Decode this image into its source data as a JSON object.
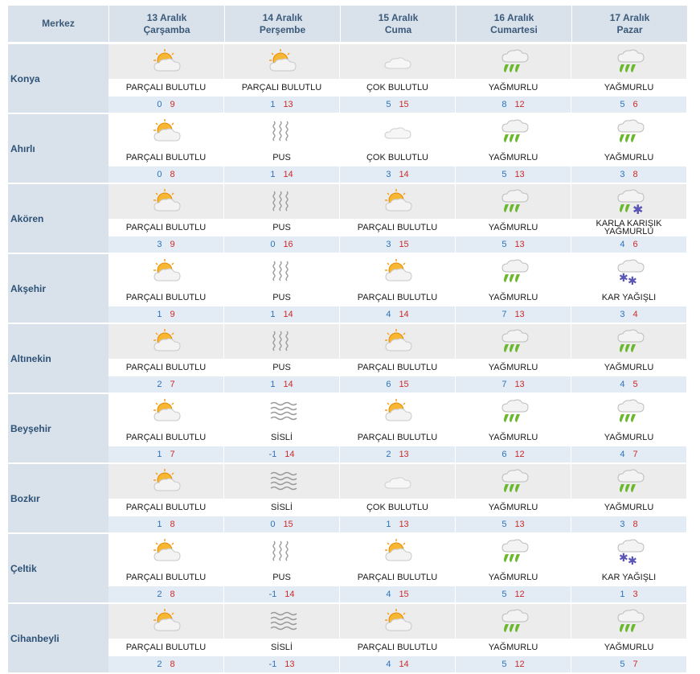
{
  "header": {
    "center_label": "Merkez",
    "days": [
      {
        "date": "13 Aralık",
        "weekday": "Çarşamba"
      },
      {
        "date": "14 Aralık",
        "weekday": "Perşembe"
      },
      {
        "date": "15 Aralık",
        "weekday": "Cuma"
      },
      {
        "date": "16 Aralık",
        "weekday": "Cumartesi"
      },
      {
        "date": "17 Aralık",
        "weekday": "Pazar"
      }
    ]
  },
  "colors": {
    "header_bg": "#d9e2eb",
    "temp_row_bg": "#e3ecf4",
    "min_temp": "#2a72bd",
    "max_temp": "#cc2a2a"
  },
  "rows": [
    {
      "city": "Konya",
      "cells": [
        {
          "icon": "partly-cloudy-icon",
          "desc": "PARÇALI BULUTLU",
          "min": "0",
          "max": "9"
        },
        {
          "icon": "partly-cloudy-icon",
          "desc": "PARÇALI BULUTLU",
          "min": "1",
          "max": "13"
        },
        {
          "icon": "cloudy-icon",
          "desc": "ÇOK BULUTLU",
          "min": "5",
          "max": "15"
        },
        {
          "icon": "rain-icon",
          "desc": "YAĞMURLU",
          "min": "8",
          "max": "12"
        },
        {
          "icon": "rain-icon",
          "desc": "YAĞMURLU",
          "min": "5",
          "max": "6"
        }
      ]
    },
    {
      "city": "Ahırlı",
      "cells": [
        {
          "icon": "partly-cloudy-icon",
          "desc": "PARÇALI BULUTLU",
          "min": "0",
          "max": "8"
        },
        {
          "icon": "haze-icon",
          "desc": "PUS",
          "min": "1",
          "max": "14"
        },
        {
          "icon": "cloudy-icon",
          "desc": "ÇOK BULUTLU",
          "min": "3",
          "max": "14"
        },
        {
          "icon": "rain-icon",
          "desc": "YAĞMURLU",
          "min": "5",
          "max": "13"
        },
        {
          "icon": "rain-icon",
          "desc": "YAĞMURLU",
          "min": "3",
          "max": "8"
        }
      ]
    },
    {
      "city": "Akören",
      "cells": [
        {
          "icon": "partly-cloudy-icon",
          "desc": "PARÇALI BULUTLU",
          "min": "3",
          "max": "9"
        },
        {
          "icon": "haze-icon",
          "desc": "PUS",
          "min": "0",
          "max": "16"
        },
        {
          "icon": "partly-cloudy-icon",
          "desc": "PARÇALI BULUTLU",
          "min": "3",
          "max": "15"
        },
        {
          "icon": "rain-icon",
          "desc": "YAĞMURLU",
          "min": "5",
          "max": "13"
        },
        {
          "icon": "sleet-icon",
          "desc": "KARLA KARIŞIK YAĞMURLU",
          "min": "4",
          "max": "6"
        }
      ]
    },
    {
      "city": "Akşehir",
      "cells": [
        {
          "icon": "partly-cloudy-icon",
          "desc": "PARÇALI BULUTLU",
          "min": "1",
          "max": "9"
        },
        {
          "icon": "haze-icon",
          "desc": "PUS",
          "min": "1",
          "max": "14"
        },
        {
          "icon": "partly-cloudy-icon",
          "desc": "PARÇALI BULUTLU",
          "min": "4",
          "max": "14"
        },
        {
          "icon": "rain-icon",
          "desc": "YAĞMURLU",
          "min": "7",
          "max": "13"
        },
        {
          "icon": "snow-icon",
          "desc": "KAR YAĞIŞLI",
          "min": "3",
          "max": "4"
        }
      ]
    },
    {
      "city": "Altınekin",
      "cells": [
        {
          "icon": "partly-cloudy-icon",
          "desc": "PARÇALI BULUTLU",
          "min": "2",
          "max": "7"
        },
        {
          "icon": "haze-icon",
          "desc": "PUS",
          "min": "1",
          "max": "14"
        },
        {
          "icon": "partly-cloudy-icon",
          "desc": "PARÇALI BULUTLU",
          "min": "6",
          "max": "15"
        },
        {
          "icon": "rain-icon",
          "desc": "YAĞMURLU",
          "min": "7",
          "max": "13"
        },
        {
          "icon": "rain-icon",
          "desc": "YAĞMURLU",
          "min": "4",
          "max": "5"
        }
      ]
    },
    {
      "city": "Beyşehir",
      "cells": [
        {
          "icon": "partly-cloudy-icon",
          "desc": "PARÇALI BULUTLU",
          "min": "1",
          "max": "7"
        },
        {
          "icon": "fog-icon",
          "desc": "SİSLİ",
          "min": "-1",
          "max": "14"
        },
        {
          "icon": "partly-cloudy-icon",
          "desc": "PARÇALI BULUTLU",
          "min": "2",
          "max": "13"
        },
        {
          "icon": "rain-icon",
          "desc": "YAĞMURLU",
          "min": "6",
          "max": "12"
        },
        {
          "icon": "rain-icon",
          "desc": "YAĞMURLU",
          "min": "4",
          "max": "7"
        }
      ]
    },
    {
      "city": "Bozkır",
      "cells": [
        {
          "icon": "partly-cloudy-icon",
          "desc": "PARÇALI BULUTLU",
          "min": "1",
          "max": "8"
        },
        {
          "icon": "fog-icon",
          "desc": "SİSLİ",
          "min": "0",
          "max": "15"
        },
        {
          "icon": "cloudy-icon",
          "desc": "ÇOK BULUTLU",
          "min": "1",
          "max": "13"
        },
        {
          "icon": "rain-icon",
          "desc": "YAĞMURLU",
          "min": "5",
          "max": "13"
        },
        {
          "icon": "rain-icon",
          "desc": "YAĞMURLU",
          "min": "3",
          "max": "8"
        }
      ]
    },
    {
      "city": "Çeltik",
      "cells": [
        {
          "icon": "partly-cloudy-icon",
          "desc": "PARÇALI BULUTLU",
          "min": "2",
          "max": "8"
        },
        {
          "icon": "haze-icon",
          "desc": "PUS",
          "min": "-1",
          "max": "14"
        },
        {
          "icon": "partly-cloudy-icon",
          "desc": "PARÇALI BULUTLU",
          "min": "4",
          "max": "15"
        },
        {
          "icon": "rain-icon",
          "desc": "YAĞMURLU",
          "min": "5",
          "max": "12"
        },
        {
          "icon": "snow-icon",
          "desc": "KAR YAĞIŞLI",
          "min": "1",
          "max": "3"
        }
      ]
    },
    {
      "city": "Cihanbeyli",
      "cells": [
        {
          "icon": "partly-cloudy-icon",
          "desc": "PARÇALI BULUTLU",
          "min": "2",
          "max": "8"
        },
        {
          "icon": "fog-icon",
          "desc": "SİSLİ",
          "min": "-1",
          "max": "13"
        },
        {
          "icon": "partly-cloudy-icon",
          "desc": "PARÇALI BULUTLU",
          "min": "4",
          "max": "14"
        },
        {
          "icon": "rain-icon",
          "desc": "YAĞMURLU",
          "min": "5",
          "max": "12"
        },
        {
          "icon": "rain-icon",
          "desc": "YAĞMURLU",
          "min": "5",
          "max": "7"
        }
      ]
    }
  ]
}
